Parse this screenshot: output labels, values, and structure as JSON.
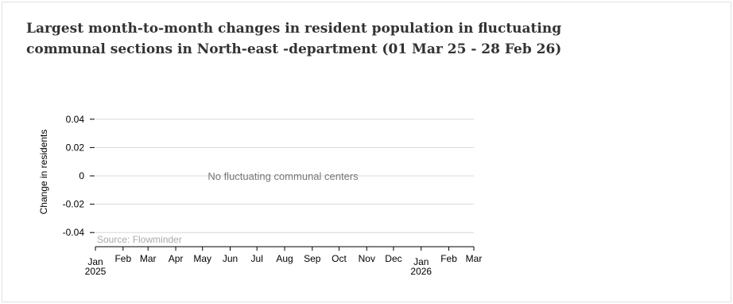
{
  "title_lines": [
    "Largest month-to-month changes in resident population in fluctuating",
    "communal sections in North-east -department (01 Mar 25 - 28 Feb 26)"
  ],
  "source": "Source: Flowminder",
  "colors": {
    "grid": "#d9d9d9",
    "axis": "#000000",
    "message": "#777777",
    "source": "#aaaaaa",
    "title": "#333333"
  },
  "chart_data": {
    "type": "line",
    "title": "Largest month-to-month changes in resident population in fluctuating communal sections in North-east -department (01 Mar 25 - 28 Feb 26)",
    "xlabel": "",
    "ylabel": "Change in residents",
    "ylim": [
      -0.05,
      0.05
    ],
    "yticks": [
      0.04,
      0.02,
      0,
      -0.02,
      -0.04
    ],
    "ytick_labels": [
      "0.04",
      "0.02",
      "0",
      "-0.02",
      "-0.04"
    ],
    "xlim": [
      "2025-01-01",
      "2026-03-01"
    ],
    "xticks": [
      {
        "date": "2025-01-01",
        "label": "Jan",
        "year": "2025"
      },
      {
        "date": "2025-02-01",
        "label": "Feb",
        "year": ""
      },
      {
        "date": "2025-03-01",
        "label": "Mar",
        "year": ""
      },
      {
        "date": "2025-04-01",
        "label": "Apr",
        "year": ""
      },
      {
        "date": "2025-05-01",
        "label": "May",
        "year": ""
      },
      {
        "date": "2025-06-01",
        "label": "Jun",
        "year": ""
      },
      {
        "date": "2025-07-01",
        "label": "Jul",
        "year": ""
      },
      {
        "date": "2025-08-01",
        "label": "Aug",
        "year": ""
      },
      {
        "date": "2025-09-01",
        "label": "Sep",
        "year": ""
      },
      {
        "date": "2025-10-01",
        "label": "Oct",
        "year": ""
      },
      {
        "date": "2025-11-01",
        "label": "Nov",
        "year": ""
      },
      {
        "date": "2025-12-01",
        "label": "Dec",
        "year": ""
      },
      {
        "date": "2026-01-01",
        "label": "Jan",
        "year": "2026"
      },
      {
        "date": "2026-02-01",
        "label": "Feb",
        "year": ""
      },
      {
        "date": "2026-03-01",
        "label": "Mar",
        "year": ""
      }
    ],
    "grid": true,
    "series": [],
    "annotations": [
      "No fluctuating communal centers"
    ]
  }
}
